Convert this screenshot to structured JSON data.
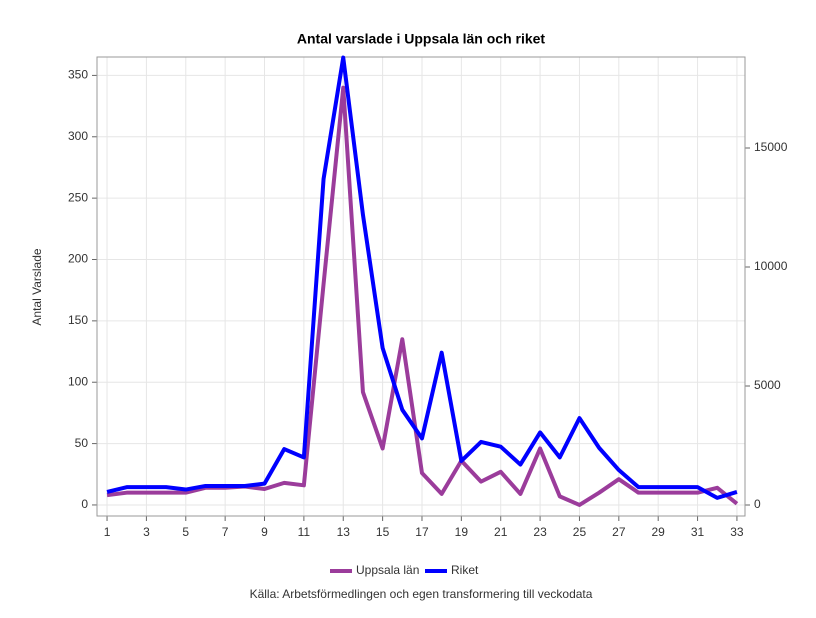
{
  "chart_data": {
    "type": "line",
    "title": "Antal varslade i Uppsala län och riket",
    "y_label": "Antal Varslade",
    "source": "Källa: Arbetsförmedlingen och egen transformering till veckodata",
    "x": [
      1,
      2,
      3,
      4,
      5,
      6,
      7,
      8,
      9,
      10,
      11,
      12,
      13,
      14,
      15,
      16,
      17,
      18,
      19,
      20,
      21,
      22,
      23,
      24,
      25,
      26,
      27,
      28,
      29,
      30,
      31,
      32,
      33
    ],
    "xlim": [
      0.49,
      33.41
    ],
    "xticks": [
      1,
      3,
      5,
      7,
      9,
      11,
      13,
      15,
      17,
      19,
      21,
      23,
      25,
      27,
      29,
      31,
      33
    ],
    "ylim": [
      -9,
      365
    ],
    "yticks": [
      0,
      50,
      100,
      150,
      200,
      250,
      300,
      350
    ],
    "y2lim": [
      -462,
      18824
    ],
    "y2ticks": [
      0,
      5000,
      10000,
      15000
    ],
    "grid": true,
    "legend": "bottom",
    "series": [
      {
        "name": "Uppsala län",
        "color": "#9b3c9b",
        "axis": "y",
        "values": [
          8,
          10,
          10,
          10,
          10,
          14,
          14,
          15,
          13,
          18,
          16,
          180,
          340,
          92,
          46,
          135,
          26,
          9,
          36,
          19,
          27,
          9,
          46,
          7,
          0,
          10,
          21,
          10,
          10,
          10,
          10,
          14,
          1
        ]
      },
      {
        "name": "Riket",
        "color": "#0000ff",
        "axis": "y2",
        "values": [
          550,
          750,
          750,
          750,
          650,
          800,
          800,
          800,
          900,
          2350,
          2000,
          13700,
          18800,
          12200,
          6600,
          4000,
          2800,
          6400,
          1850,
          2650,
          2450,
          1700,
          3050,
          2000,
          3650,
          2400,
          1470,
          750,
          750,
          750,
          750,
          300,
          550
        ]
      }
    ]
  }
}
